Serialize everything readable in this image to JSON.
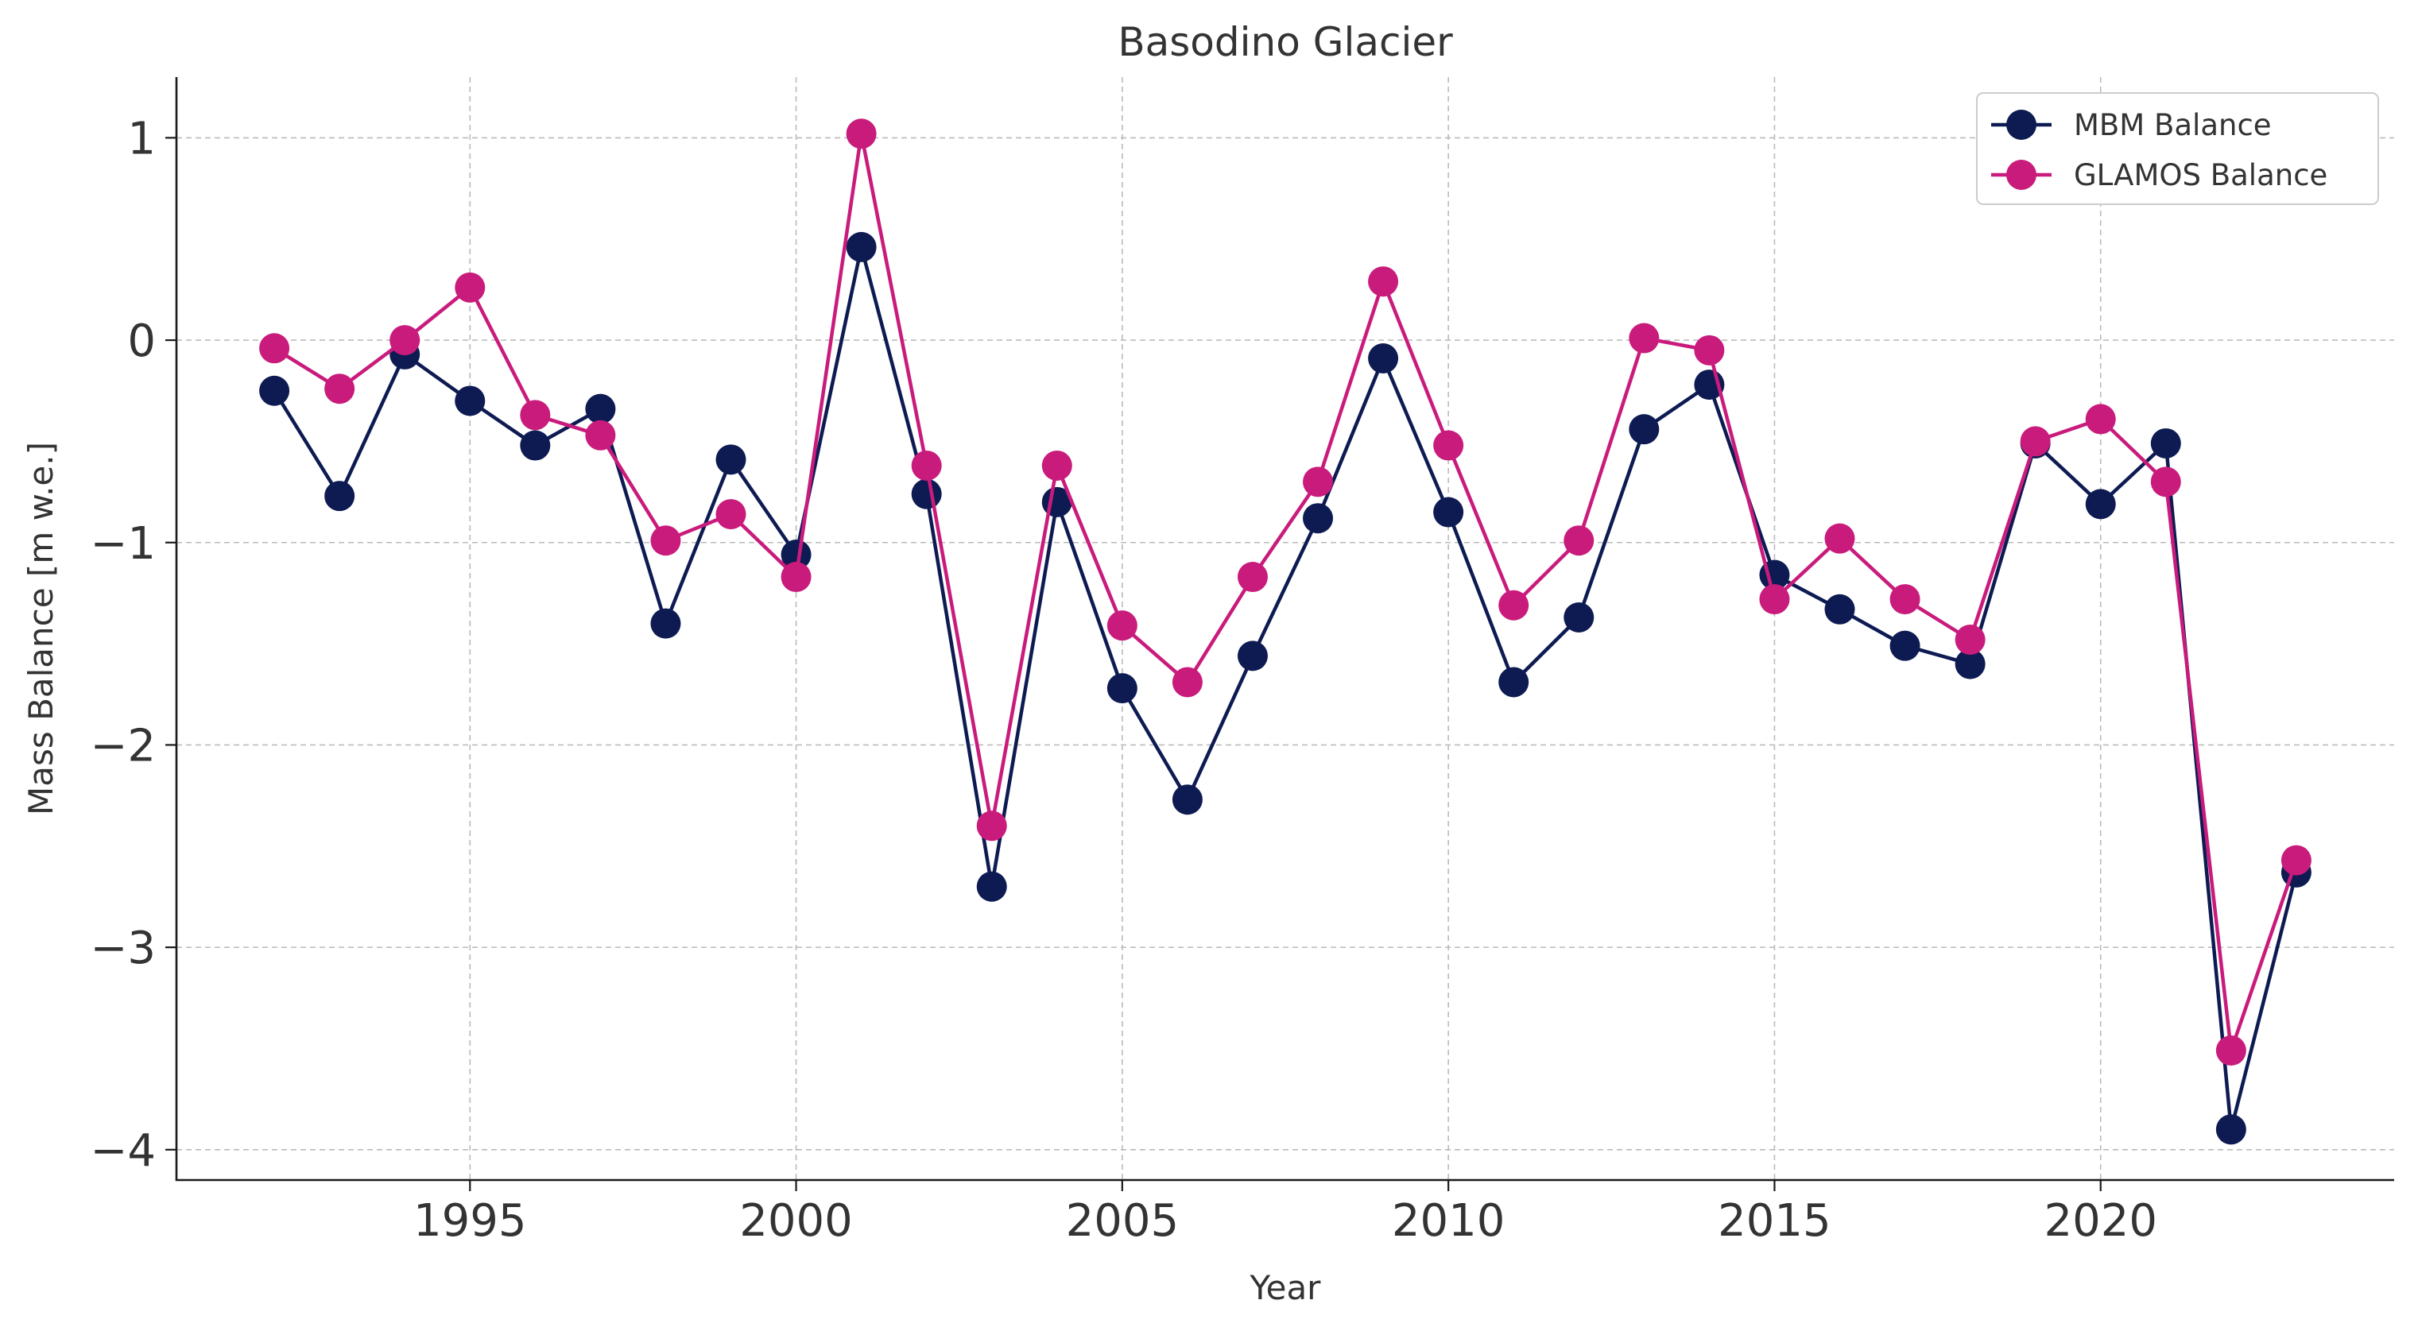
{
  "chart_data": {
    "type": "line",
    "title": "Basodino Glacier",
    "xlabel": "Year",
    "ylabel": "Mass Balance [m w.e.]",
    "xlim": [
      1990.5,
      2024.5
    ],
    "ylim": [
      -4.15,
      1.3
    ],
    "x_ticks": [
      1995,
      2000,
      2005,
      2010,
      2015,
      2020
    ],
    "y_ticks": [
      1,
      0,
      -1,
      -2,
      -3,
      -4
    ],
    "y_tick_labels": [
      "1",
      "0",
      "−1",
      "−2",
      "−3",
      "−4"
    ],
    "grid": true,
    "legend_position": "top-right",
    "x": [
      1992,
      1993,
      1994,
      1995,
      1996,
      1997,
      1998,
      1999,
      2000,
      2001,
      2002,
      2003,
      2004,
      2005,
      2006,
      2007,
      2008,
      2009,
      2010,
      2011,
      2012,
      2013,
      2014,
      2015,
      2016,
      2017,
      2018,
      2019,
      2020,
      2021,
      2022,
      2023
    ],
    "series": [
      {
        "name": "MBM Balance",
        "color": "#0d1b52",
        "values": [
          -0.25,
          -0.77,
          -0.07,
          -0.3,
          -0.52,
          -0.34,
          -1.4,
          -0.59,
          -1.06,
          0.46,
          -0.76,
          -2.7,
          -0.8,
          -1.72,
          -2.27,
          -1.56,
          -0.88,
          -0.09,
          -0.85,
          -1.69,
          -1.37,
          -0.44,
          -0.22,
          -1.16,
          -1.33,
          -1.51,
          -1.6,
          -0.51,
          -0.81,
          -0.51,
          -3.9,
          -2.63
        ]
      },
      {
        "name": "GLAMOS Balance",
        "color": "#c91b7c",
        "values": [
          -0.04,
          -0.24,
          0.0,
          0.26,
          -0.37,
          -0.47,
          -0.99,
          -0.86,
          -1.17,
          1.02,
          -0.62,
          -2.4,
          -0.62,
          -1.41,
          -1.69,
          -1.17,
          -0.7,
          0.29,
          -0.52,
          -1.31,
          -0.99,
          0.01,
          -0.05,
          -1.28,
          -0.98,
          -1.28,
          -1.48,
          -0.5,
          -0.39,
          -0.7,
          -3.51,
          -2.57
        ]
      }
    ]
  }
}
